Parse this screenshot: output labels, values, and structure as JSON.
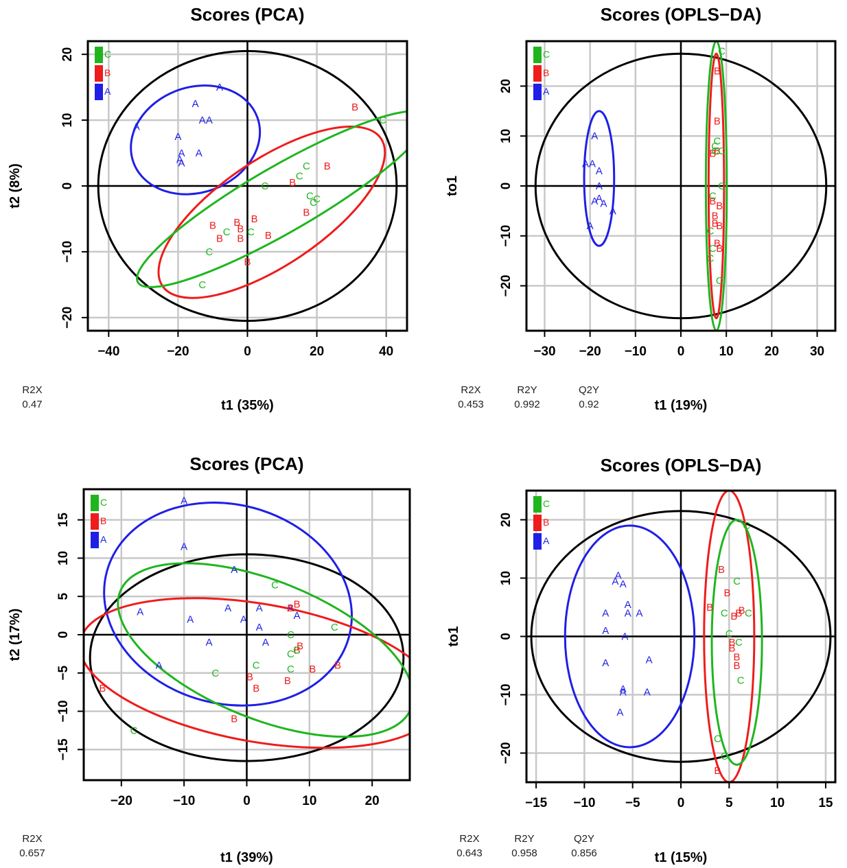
{
  "colors": {
    "A": "#1f1fe6",
    "B": "#ee1c1c",
    "C": "#1fb51f",
    "frame": "#000000",
    "grid": "#c8c8c8"
  },
  "chart_data": [
    {
      "type": "scatter",
      "title": "Scores (PCA)",
      "xlabel": "t1 (35%)",
      "ylabel": "t2 (8%)",
      "xlim": [
        -46,
        46
      ],
      "ylim": [
        -22,
        22
      ],
      "xticks": [
        -40,
        -20,
        0,
        20,
        40
      ],
      "yticks": [
        -20,
        -10,
        0,
        10,
        20
      ],
      "grid": true,
      "legend": {
        "position": "top-left",
        "entries": [
          "C",
          "B",
          "A"
        ]
      },
      "stats": [
        {
          "label": "R2X",
          "value": "0.47"
        }
      ],
      "series": [
        {
          "name": "A",
          "points": [
            [
              -8,
              15
            ],
            [
              -15,
              12.5
            ],
            [
              -13,
              10
            ],
            [
              -11,
              10
            ],
            [
              -32,
              9
            ],
            [
              -20,
              7.5
            ],
            [
              -19,
              5
            ],
            [
              -19.5,
              4
            ],
            [
              -14,
              5
            ],
            [
              -19,
              3.5
            ]
          ],
          "ellipse": {
            "cx": -15,
            "cy": 7,
            "rx": 19,
            "ry": 8,
            "angle": 20
          }
        },
        {
          "name": "B",
          "points": [
            [
              31,
              12
            ],
            [
              23,
              3
            ],
            [
              13,
              0.5
            ],
            [
              17,
              -4
            ],
            [
              -10,
              -6
            ],
            [
              -3,
              -5.5
            ],
            [
              2,
              -5
            ],
            [
              -2,
              -6.5
            ],
            [
              -8,
              -8
            ],
            [
              -2,
              -8
            ],
            [
              6,
              -7.5
            ],
            [
              0,
              -11.5
            ]
          ],
          "ellipse": {
            "cx": 7,
            "cy": -4,
            "rx": 38,
            "ry": 8,
            "angle": 34
          }
        },
        {
          "name": "C",
          "points": [
            [
              39,
              10
            ],
            [
              17,
              3
            ],
            [
              15,
              1.5
            ],
            [
              5,
              0
            ],
            [
              18,
              -1.5
            ],
            [
              19,
              -2.5
            ],
            [
              20,
              -2
            ],
            [
              -6,
              -7
            ],
            [
              1,
              -7
            ],
            [
              -11,
              -10
            ],
            [
              -13,
              -15
            ]
          ],
          "ellipse": {
            "cx": 10,
            "cy": -2,
            "rx": 48,
            "ry": 5,
            "angle": 30
          }
        }
      ],
      "overall_ellipse": {
        "cx": 0,
        "cy": 0,
        "rx": 43,
        "ry": 20.5
      }
    },
    {
      "type": "scatter",
      "title": "Scores (OPLS−DA)",
      "xlabel": "t1 (19%)",
      "ylabel": "to1",
      "xlim": [
        -34,
        34
      ],
      "ylim": [
        -29,
        29
      ],
      "xticks": [
        -30,
        -20,
        -10,
        0,
        10,
        20,
        30
      ],
      "yticks": [
        -20,
        -10,
        0,
        10,
        20
      ],
      "grid": true,
      "legend": {
        "position": "top-left",
        "entries": [
          "C",
          "B",
          "A"
        ]
      },
      "stats": [
        {
          "label": "R2X",
          "value": "0.453"
        },
        {
          "label": "R2Y",
          "value": "0.992"
        },
        {
          "label": "Q2Y",
          "value": "0.92"
        }
      ],
      "series": [
        {
          "name": "A",
          "points": [
            [
              -19,
              10
            ],
            [
              -21,
              4.5
            ],
            [
              -19.5,
              4.5
            ],
            [
              -18,
              3
            ],
            [
              -18,
              0
            ],
            [
              -19,
              -3
            ],
            [
              -18,
              -2.5
            ],
            [
              -17,
              -3.5
            ],
            [
              -15,
              -5
            ],
            [
              -20,
              -8
            ]
          ],
          "ellipse": {
            "cx": -18,
            "cy": 1.5,
            "rx": 3.3,
            "ry": 13.5,
            "angle": 0
          }
        },
        {
          "name": "B",
          "points": [
            [
              8,
              23
            ],
            [
              8,
              13
            ],
            [
              7,
              6.5
            ],
            [
              8,
              7
            ],
            [
              7,
              -3
            ],
            [
              8.5,
              -4
            ],
            [
              7.5,
              -6
            ],
            [
              8.5,
              -8
            ],
            [
              7.5,
              -7.5
            ],
            [
              8,
              -11.5
            ],
            [
              8.5,
              -12.5
            ]
          ],
          "ellipse": {
            "cx": 7.8,
            "cy": 0,
            "rx": 1.7,
            "ry": 26.5,
            "angle": 0
          }
        },
        {
          "name": "C",
          "points": [
            [
              9,
              27
            ],
            [
              8,
              9
            ],
            [
              7.5,
              8
            ],
            [
              9,
              7
            ],
            [
              7.5,
              7
            ],
            [
              9,
              0
            ],
            [
              7,
              -2
            ],
            [
              6.5,
              -9
            ],
            [
              7,
              -12.5
            ],
            [
              6.5,
              -14.5
            ],
            [
              8.5,
              -19
            ]
          ],
          "ellipse": {
            "cx": 7.8,
            "cy": 0,
            "rx": 2.3,
            "ry": 29,
            "angle": 0
          }
        }
      ],
      "overall_ellipse": {
        "cx": 0,
        "cy": 0,
        "rx": 32,
        "ry": 26.5
      }
    },
    {
      "type": "scatter",
      "title": "Scores (PCA)",
      "xlabel": "t1 (39%)",
      "ylabel": "t2 (17%)",
      "xlim": [
        -26,
        26
      ],
      "ylim": [
        -19,
        19
      ],
      "xticks": [
        -20,
        -10,
        0,
        10,
        20
      ],
      "yticks": [
        -15,
        -10,
        -5,
        0,
        5,
        10,
        15
      ],
      "grid": true,
      "legend": {
        "position": "top-left",
        "entries": [
          "C",
          "B",
          "A"
        ]
      },
      "stats": [
        {
          "label": "R2X",
          "value": "0.657"
        }
      ],
      "series": [
        {
          "name": "A",
          "points": [
            [
              -10,
              17.5
            ],
            [
              -10,
              11.5
            ],
            [
              -2,
              8.5
            ],
            [
              -17,
              3
            ],
            [
              -3,
              3.5
            ],
            [
              2,
              3.5
            ],
            [
              7,
              3.5
            ],
            [
              -9,
              2
            ],
            [
              -0.5,
              2
            ],
            [
              2,
              1
            ],
            [
              8,
              2.5
            ],
            [
              -6,
              -1
            ],
            [
              3,
              -1
            ],
            [
              -14,
              -4
            ]
          ],
          "ellipse": {
            "cx": -3,
            "cy": 4,
            "rx": 20,
            "ry": 13,
            "angle": -15
          }
        },
        {
          "name": "B",
          "points": [
            [
              -23,
              -7
            ],
            [
              8,
              4
            ],
            [
              7,
              3.5
            ],
            [
              8.5,
              -1.5
            ],
            [
              8,
              -2
            ],
            [
              0.5,
              -5.5
            ],
            [
              1.5,
              -7
            ],
            [
              6.5,
              -6
            ],
            [
              10.5,
              -4.5
            ],
            [
              14.5,
              -4
            ],
            [
              -2,
              -11
            ]
          ],
          "ellipse": {
            "cx": 2,
            "cy": -5,
            "rx": 29,
            "ry": 9,
            "angle": -10
          }
        },
        {
          "name": "C",
          "points": [
            [
              4.5,
              6.5
            ],
            [
              14,
              1
            ],
            [
              7,
              0
            ],
            [
              7,
              -2.5
            ],
            [
              8,
              -2
            ],
            [
              1.5,
              -4
            ],
            [
              7,
              -4.5
            ],
            [
              -5,
              -5
            ],
            [
              -18,
              -12.5
            ]
          ],
          "ellipse": {
            "cx": 3,
            "cy": -2,
            "rx": 25,
            "ry": 9,
            "angle": -22
          }
        }
      ],
      "overall_ellipse": {
        "cx": 0,
        "cy": -3,
        "rx": 25,
        "ry": 13.5
      }
    },
    {
      "type": "scatter",
      "title": "Scores (OPLS−DA)",
      "xlabel": "t1 (15%)",
      "ylabel": "to1",
      "xlim": [
        -16,
        16
      ],
      "ylim": [
        -25,
        25
      ],
      "xticks": [
        -15,
        -10,
        -5,
        0,
        5,
        10,
        15
      ],
      "yticks": [
        -20,
        -10,
        0,
        10,
        20
      ],
      "grid": true,
      "legend": {
        "position": "top-left",
        "entries": [
          "C",
          "B",
          "A"
        ]
      },
      "stats": [
        {
          "label": "R2X",
          "value": "0.643"
        },
        {
          "label": "R2Y",
          "value": "0.958"
        },
        {
          "label": "Q2Y",
          "value": "0.856"
        }
      ],
      "series": [
        {
          "name": "A",
          "points": [
            [
              -6.5,
              10.5
            ],
            [
              -6.8,
              9.5
            ],
            [
              -6,
              9
            ],
            [
              -5.5,
              5.5
            ],
            [
              -5.5,
              4
            ],
            [
              -4.3,
              4
            ],
            [
              -7.8,
              4
            ],
            [
              -7.8,
              1
            ],
            [
              -5.8,
              0
            ],
            [
              -3.3,
              -4
            ],
            [
              -7.8,
              -4.5
            ],
            [
              -6,
              -9
            ],
            [
              -6,
              -9.5
            ],
            [
              -3.5,
              -9.5
            ],
            [
              -6.3,
              -13
            ]
          ],
          "ellipse": {
            "cx": -5.3,
            "cy": 0,
            "rx": 6.7,
            "ry": 19,
            "angle": 0
          }
        },
        {
          "name": "B",
          "points": [
            [
              4.2,
              11.5
            ],
            [
              4.8,
              7.5
            ],
            [
              6.3,
              4.5
            ],
            [
              6,
              4
            ],
            [
              3,
              5
            ],
            [
              5.5,
              3.5
            ],
            [
              5.3,
              -1
            ],
            [
              5.3,
              -2
            ],
            [
              5.8,
              -3.5
            ],
            [
              5.8,
              -5
            ],
            [
              3.8,
              -23
            ]
          ],
          "ellipse": {
            "cx": 5,
            "cy": 0,
            "rx": 2.6,
            "ry": 25,
            "angle": 0
          }
        },
        {
          "name": "C",
          "points": [
            [
              6.8,
              19
            ],
            [
              5.8,
              9.5
            ],
            [
              4.5,
              4
            ],
            [
              7,
              4
            ],
            [
              5,
              0.5
            ],
            [
              6,
              -1
            ],
            [
              6.2,
              -7.5
            ],
            [
              3.8,
              -17.5
            ],
            [
              4.5,
              -20.5
            ]
          ],
          "ellipse": {
            "cx": 5.8,
            "cy": -1,
            "rx": 2.6,
            "ry": 21,
            "angle": 0
          }
        }
      ],
      "overall_ellipse": {
        "cx": 0,
        "cy": 0,
        "rx": 15.5,
        "ry": 21.5
      }
    }
  ]
}
